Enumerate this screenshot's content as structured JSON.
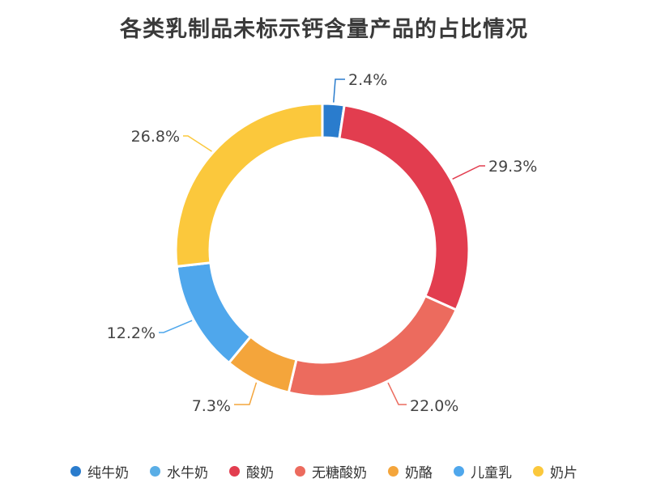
{
  "chart_data": {
    "type": "pie",
    "title": "各类乳制品未标示钙含量产品的占比情况",
    "categories": [
      "纯牛奶",
      "水牛奶",
      "酸奶",
      "无糖酸奶",
      "奶酪",
      "儿童乳",
      "奶片"
    ],
    "values": [
      2.4,
      0.0,
      29.3,
      22.0,
      7.3,
      12.2,
      26.8
    ],
    "labels": [
      "2.4%",
      "",
      "29.3%",
      "22.0%",
      "7.3%",
      "12.2%",
      "26.8%"
    ],
    "colors": [
      "#2a7ccd",
      "#5aaee6",
      "#e23d4f",
      "#ec6b5e",
      "#f4a53b",
      "#4fa7ec",
      "#fbc83c"
    ],
    "donut": true,
    "legend_position": "bottom"
  }
}
